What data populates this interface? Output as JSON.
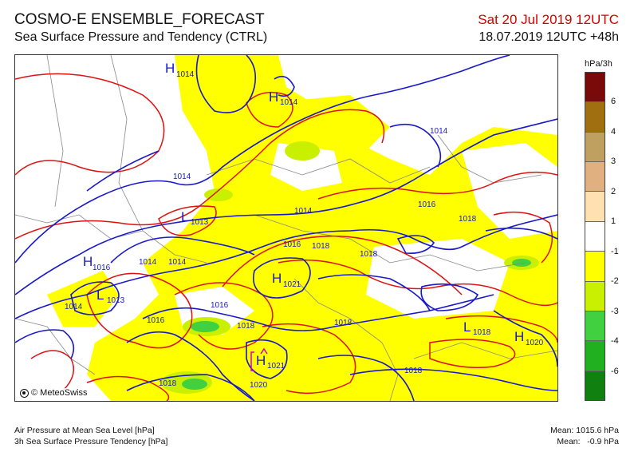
{
  "header": {
    "product": "COSMO-E ENSEMBLE_FORECAST",
    "parameter": "Sea Surface Pressure and Tendency (CTRL)",
    "valid_time": "Sat 20 Jul 2019 12UTC",
    "run_time": "18.07.2019 12UTC +48h"
  },
  "map": {
    "copyright": "© MeteoSwiss",
    "pressure_labels": [
      {
        "text": "1014"
      },
      {
        "text": "1014"
      },
      {
        "text": "1014"
      },
      {
        "text": "1014"
      },
      {
        "text": "1016"
      },
      {
        "text": "1018"
      },
      {
        "text": "1016"
      },
      {
        "text": "1018"
      },
      {
        "text": "1014"
      },
      {
        "text": "1016"
      },
      {
        "text": "1018"
      },
      {
        "text": "1016"
      },
      {
        "text": "1018"
      },
      {
        "text": "1018"
      },
      {
        "text": "1020"
      },
      {
        "text": "1018"
      },
      {
        "text": "1018"
      },
      {
        "text": "1014"
      }
    ],
    "centers": [
      {
        "type": "H",
        "value": "1014"
      },
      {
        "type": "H",
        "value": "1014"
      },
      {
        "type": "L",
        "value": "1013"
      },
      {
        "type": "H",
        "value": "1016"
      },
      {
        "type": "L",
        "value": "1013"
      },
      {
        "type": "H",
        "value": "1021"
      },
      {
        "type": "H",
        "value": "1021"
      },
      {
        "type": "L",
        "value": "1018"
      },
      {
        "type": "H",
        "value": "1020"
      }
    ]
  },
  "legend": {
    "unit": "hPa/3h",
    "colors": [
      "#7a0a0a",
      "#a07010",
      "#c0a060",
      "#e0b080",
      "#ffe0b0",
      "#ffffff",
      "#ffff00",
      "#c8f000",
      "#40d040",
      "#20b020",
      "#108010"
    ],
    "ticks": [
      "6",
      "4",
      "3",
      "2",
      "1",
      "-1",
      "-2",
      "-3",
      "-4",
      "-6"
    ]
  },
  "footer": {
    "line1": "Air Pressure at Mean Sea Level [hPa]",
    "line2": "3h Sea Surface Pressure Tendency [hPa]",
    "mean_pressure": "Mean: 1015.6 hPa",
    "mean_tendency": "Mean:   -0.9 hPa"
  }
}
